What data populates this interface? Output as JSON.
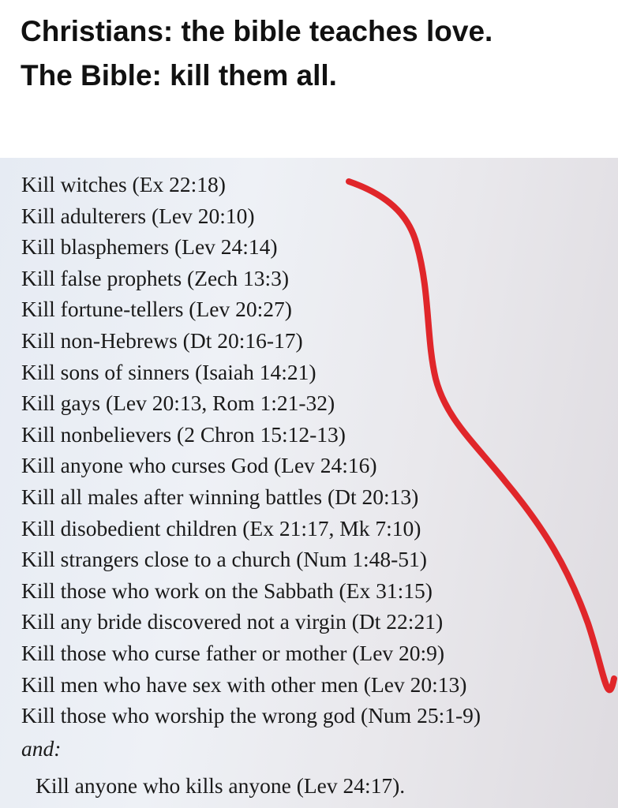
{
  "caption": {
    "line1": "Christians: the bible teaches love.",
    "line2": "The Bible: kill them all."
  },
  "list": {
    "items": [
      "Kill witches (Ex 22:18)",
      "Kill adulterers (Lev 20:10)",
      "Kill blasphemers (Lev 24:14)",
      "Kill false prophets (Zech 13:3)",
      "Kill fortune-tellers (Lev 20:27)",
      "Kill non-Hebrews (Dt 20:16-17)",
      "Kill sons of sinners (Isaiah 14:21)",
      "Kill gays (Lev 20:13, Rom 1:21-32)",
      "Kill nonbelievers (2 Chron 15:12-13)",
      "Kill anyone who curses God (Lev 24:16)",
      "Kill all males after winning battles (Dt 20:13)",
      "Kill disobedient children (Ex 21:17, Mk 7:10)",
      "Kill strangers close to a church (Num 1:48-51)",
      "Kill those who work on the Sabbath (Ex 31:15)",
      "Kill any bride discovered not a virgin (Dt 22:21)",
      "Kill those who curse father or mother (Lev 20:9)",
      "Kill men who have sex with other men (Lev 20:13)",
      "Kill those who worship the wrong god (Num 25:1-9)"
    ],
    "and_label": "and:",
    "final": "Kill anyone who kills anyone (Lev 24:17)."
  },
  "colors": {
    "marker": "#e0262a"
  }
}
